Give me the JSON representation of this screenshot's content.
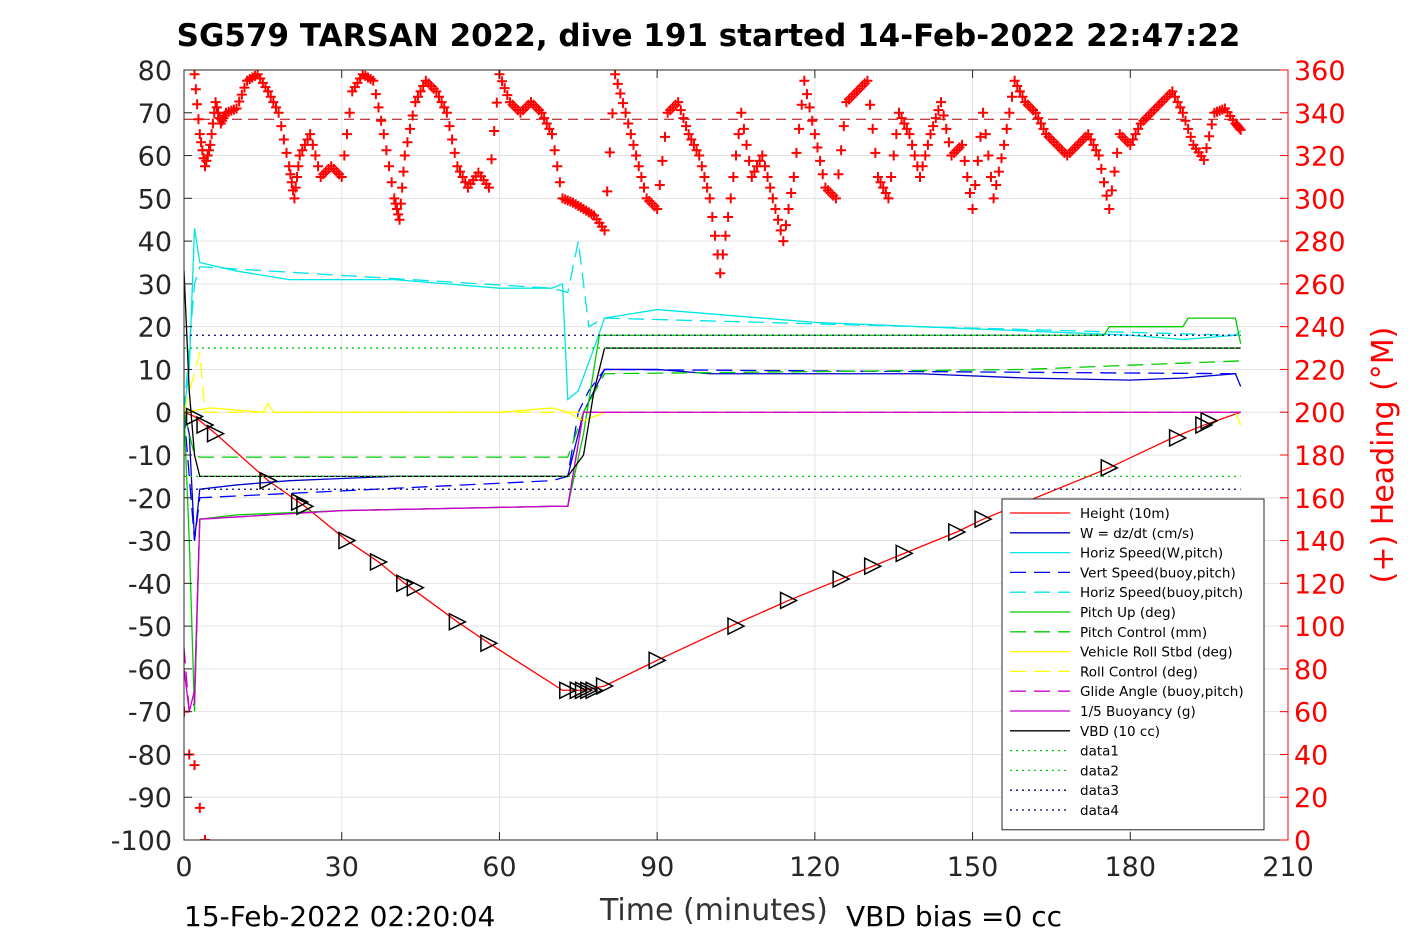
{
  "title": "SG579 TARSAN 2022, dive 191 started 14-Feb-2022 22:47:22",
  "footer_left": "15-Feb-2022 02:20:04",
  "footer_right": "VBD bias =0 cc",
  "chart_data": {
    "type": "line",
    "xlabel": "Time (minutes)",
    "ylabel": "",
    "y2label": "(+) Heading (°M)",
    "xlim": [
      0,
      210
    ],
    "ylim": [
      -100,
      80
    ],
    "y2lim": [
      0,
      360
    ],
    "x_ticks": [
      0,
      30,
      60,
      90,
      120,
      150,
      180,
      210
    ],
    "y_ticks": [
      80,
      70,
      60,
      50,
      40,
      30,
      20,
      10,
      0,
      -10,
      -20,
      -30,
      -40,
      -50,
      -60,
      -70,
      -80,
      -90,
      -100
    ],
    "y2_ticks": [
      360,
      340,
      320,
      300,
      280,
      260,
      240,
      220,
      200,
      180,
      160,
      140,
      120,
      100,
      80,
      60,
      40,
      20,
      0
    ],
    "grid": true,
    "legend_position": "bottom-right",
    "colors": {
      "height": "#ff0000",
      "w": "#0000cc",
      "horiz_speed": "#00e5e5",
      "pitch": "#00cc00",
      "roll": "#ffff00",
      "glide": "#cc00cc",
      "vbd": "#000000",
      "heading": "#ff0000",
      "axis_right": "#ff0000"
    },
    "series": [
      {
        "name": "Height (10m)",
        "style": "solid",
        "color": "#ff0000",
        "x": [
          0,
          2,
          6,
          16,
          23,
          31,
          37,
          42,
          52,
          58,
          72,
          76,
          80,
          90,
          104,
          115,
          125,
          131,
          137,
          147,
          152,
          176,
          188,
          194,
          201
        ],
        "y": [
          0,
          -1,
          -5,
          -16,
          -22,
          -30,
          -35,
          -40,
          -49,
          -54,
          -65,
          -65,
          -64,
          -58,
          -50,
          -44,
          -39,
          -36,
          -33,
          -28,
          -25,
          -13,
          -6,
          -3,
          0
        ]
      },
      {
        "name": "W = dz/dt (cm/s)",
        "style": "solid",
        "color": "#0000cc",
        "x": [
          0,
          1,
          2,
          3,
          10,
          20,
          30,
          40,
          50,
          60,
          70,
          73,
          76,
          78,
          80,
          90,
          100,
          120,
          140,
          160,
          180,
          190,
          200,
          201
        ],
        "y": [
          0,
          -5,
          -30,
          -18,
          -17,
          -16,
          -15.5,
          -15,
          -15,
          -15,
          -15,
          -15,
          0,
          5,
          10,
          10,
          9,
          9,
          9,
          8,
          7.5,
          8,
          9,
          6
        ]
      },
      {
        "name": "Horiz Speed(W,pitch)",
        "style": "solid",
        "color": "#00e5e5",
        "x": [
          0,
          1,
          2,
          3,
          10,
          20,
          30,
          40,
          50,
          60,
          70,
          72,
          73,
          75,
          78,
          80,
          90,
          100,
          120,
          140,
          160,
          180,
          190,
          200,
          201
        ],
        "y": [
          0,
          10,
          43,
          35,
          33,
          31,
          31,
          31,
          30,
          29,
          29,
          30,
          3,
          5,
          15,
          22,
          24,
          23,
          21,
          20,
          19,
          18,
          17,
          18,
          19
        ]
      },
      {
        "name": "Vert Speed(buoy,pitch)",
        "style": "dashed",
        "color": "#0000ff",
        "x": [
          0,
          2,
          3,
          70,
          73,
          75,
          77,
          80,
          200,
          201
        ],
        "y": [
          0,
          -30,
          -20,
          -16,
          -15,
          0,
          5,
          10,
          9,
          8
        ]
      },
      {
        "name": "Horiz Speed(buoy,pitch)",
        "style": "dashed",
        "color": "#00e5e5",
        "x": [
          0,
          2,
          3,
          70,
          73,
          75,
          77,
          80,
          200,
          201
        ],
        "y": [
          0,
          30,
          34,
          29,
          28,
          40,
          20,
          22,
          18,
          18
        ]
      },
      {
        "name": "Pitch Up (deg)",
        "style": "solid",
        "color": "#00cc00",
        "x": [
          0,
          1,
          2,
          3,
          10,
          30,
          50,
          70,
          73,
          76,
          79,
          80,
          100,
          150,
          175,
          176,
          190,
          191,
          200,
          201
        ],
        "y": [
          0,
          -30,
          -70,
          -25,
          -24,
          -23,
          -22.5,
          -22,
          -22,
          -5,
          18,
          18,
          18,
          18,
          18,
          20,
          20,
          22,
          22,
          16
        ]
      },
      {
        "name": "Pitch Control (mm)",
        "style": "dashed",
        "color": "#00cc00",
        "x": [
          0,
          2,
          3,
          73,
          76,
          80,
          160,
          180,
          201
        ],
        "y": [
          0,
          -10,
          -10.5,
          -10.5,
          0,
          9,
          10,
          11,
          12
        ]
      },
      {
        "name": "Vehicle Roll Stbd (deg)",
        "style": "solid",
        "color": "#ffff00",
        "x": [
          0,
          5,
          15,
          16,
          17,
          20,
          30,
          40,
          50,
          60,
          70,
          73,
          76,
          80,
          100,
          120,
          140,
          160,
          180,
          200,
          201
        ],
        "y": [
          0,
          1,
          0,
          2,
          0,
          0,
          0,
          0,
          0,
          0,
          1,
          0,
          -2,
          0,
          0,
          0,
          0,
          0,
          0,
          0,
          -3
        ]
      },
      {
        "name": "Roll Control (deg)",
        "style": "dashed",
        "color": "#ffff00",
        "x": [
          0,
          3,
          4,
          20,
          30,
          40,
          50,
          60,
          70,
          80,
          100,
          120,
          140,
          160,
          180,
          200
        ],
        "y": [
          0,
          14,
          0,
          0,
          0,
          0,
          0,
          0,
          0,
          0,
          0,
          0,
          0,
          0,
          0,
          0
        ]
      },
      {
        "name": "Glide Angle (buoy,pitch)",
        "style": "dashed",
        "color": "#cc00cc",
        "x": [
          0,
          1,
          2,
          3,
          30,
          70,
          73,
          76,
          200,
          201
        ],
        "y": [
          -55,
          -70,
          -68,
          -25,
          -23,
          -22,
          -22,
          0,
          0,
          0
        ]
      },
      {
        "name": "1/5 Buoyancy (g)",
        "style": "solid",
        "color": "#cc00cc",
        "x": [
          0,
          1,
          2,
          3,
          30,
          70,
          73,
          76,
          200,
          201
        ],
        "y": [
          -60,
          -70,
          -65,
          -25,
          -23,
          -22,
          -22,
          0,
          0,
          0
        ]
      },
      {
        "name": "VBD (10 cc)",
        "style": "solid",
        "color": "#000000",
        "x": [
          0,
          1,
          2,
          3,
          70,
          73,
          76,
          78,
          80,
          200,
          201
        ],
        "y": [
          33,
          5,
          -10,
          -15,
          -15,
          -15,
          -10,
          5,
          15,
          15,
          15
        ]
      },
      {
        "name": "data1",
        "style": "dotted",
        "color": "#00cc00",
        "x": [
          0,
          201
        ],
        "y": [
          -15,
          -15
        ]
      },
      {
        "name": "data2",
        "style": "dotted",
        "color": "#00cc00",
        "x": [
          0,
          201
        ],
        "y": [
          15,
          15
        ]
      },
      {
        "name": "data3",
        "style": "dotted",
        "color": "#000080",
        "x": [
          0,
          201
        ],
        "y": [
          18,
          18
        ]
      },
      {
        "name": "data4",
        "style": "dotted",
        "color": "#000080",
        "x": [
          0,
          201
        ],
        "y": [
          -18,
          -18
        ]
      }
    ],
    "heading": {
      "color": "#ff0000",
      "marker": "+",
      "mean_line": 337,
      "x": [
        2,
        3,
        4,
        5,
        6,
        7,
        8,
        10,
        12,
        14,
        16,
        18,
        20,
        21,
        22,
        24,
        26,
        28,
        30,
        32,
        34,
        36,
        38,
        40,
        41,
        42,
        44,
        46,
        48,
        50,
        52,
        54,
        56,
        58,
        60,
        62,
        64,
        66,
        68,
        70,
        72,
        74,
        76,
        78,
        80,
        82,
        84,
        86,
        88,
        90,
        92,
        94,
        96,
        98,
        100,
        102,
        104,
        106,
        108,
        110,
        112,
        114,
        116,
        118,
        120,
        122,
        124,
        126,
        128,
        130,
        132,
        134,
        136,
        138,
        140,
        142,
        144,
        146,
        148,
        150,
        152,
        154,
        156,
        158,
        160,
        162,
        164,
        166,
        168,
        170,
        172,
        174,
        176,
        178,
        180,
        182,
        184,
        186,
        188,
        190,
        192,
        194,
        196,
        198,
        200,
        201
      ],
      "y": [
        358,
        330,
        315,
        325,
        345,
        335,
        340,
        342,
        355,
        358,
        350,
        340,
        315,
        300,
        320,
        330,
        310,
        315,
        310,
        350,
        358,
        355,
        330,
        300,
        290,
        320,
        345,
        355,
        350,
        340,
        315,
        305,
        312,
        305,
        358,
        345,
        340,
        345,
        340,
        330,
        300,
        298,
        295,
        292,
        285,
        358,
        340,
        320,
        300,
        295,
        340,
        345,
        330,
        320,
        300,
        265,
        300,
        340,
        310,
        320,
        300,
        280,
        310,
        355,
        330,
        305,
        300,
        345,
        350,
        355,
        310,
        300,
        340,
        330,
        310,
        330,
        345,
        320,
        325,
        295,
        340,
        300,
        325,
        355,
        345,
        340,
        330,
        325,
        320,
        325,
        330,
        320,
        295,
        330,
        325,
        335,
        340,
        345,
        350,
        340,
        325,
        318,
        340,
        342,
        335,
        332
      ]
    },
    "heading_low": {
      "x": [
        0,
        1,
        2,
        3,
        4
      ],
      "y": [
        60,
        40,
        35,
        15,
        0
      ]
    },
    "markers": {
      "x": [
        2,
        4,
        6,
        16,
        22,
        23,
        31,
        37,
        42,
        44,
        52,
        58,
        73,
        75,
        76,
        77,
        78,
        80,
        90,
        105,
        115,
        125,
        131,
        137,
        147,
        152,
        176,
        189,
        194,
        195
      ],
      "y": [
        -1,
        -3,
        -5,
        -16,
        -21,
        -22,
        -30,
        -35,
        -40,
        -41,
        -49,
        -54,
        -65,
        -65,
        -65,
        -65,
        -65,
        -64,
        -58,
        -50,
        -44,
        -39,
        -36,
        -33,
        -28,
        -25,
        -13,
        -6,
        -3,
        -2
      ]
    }
  }
}
